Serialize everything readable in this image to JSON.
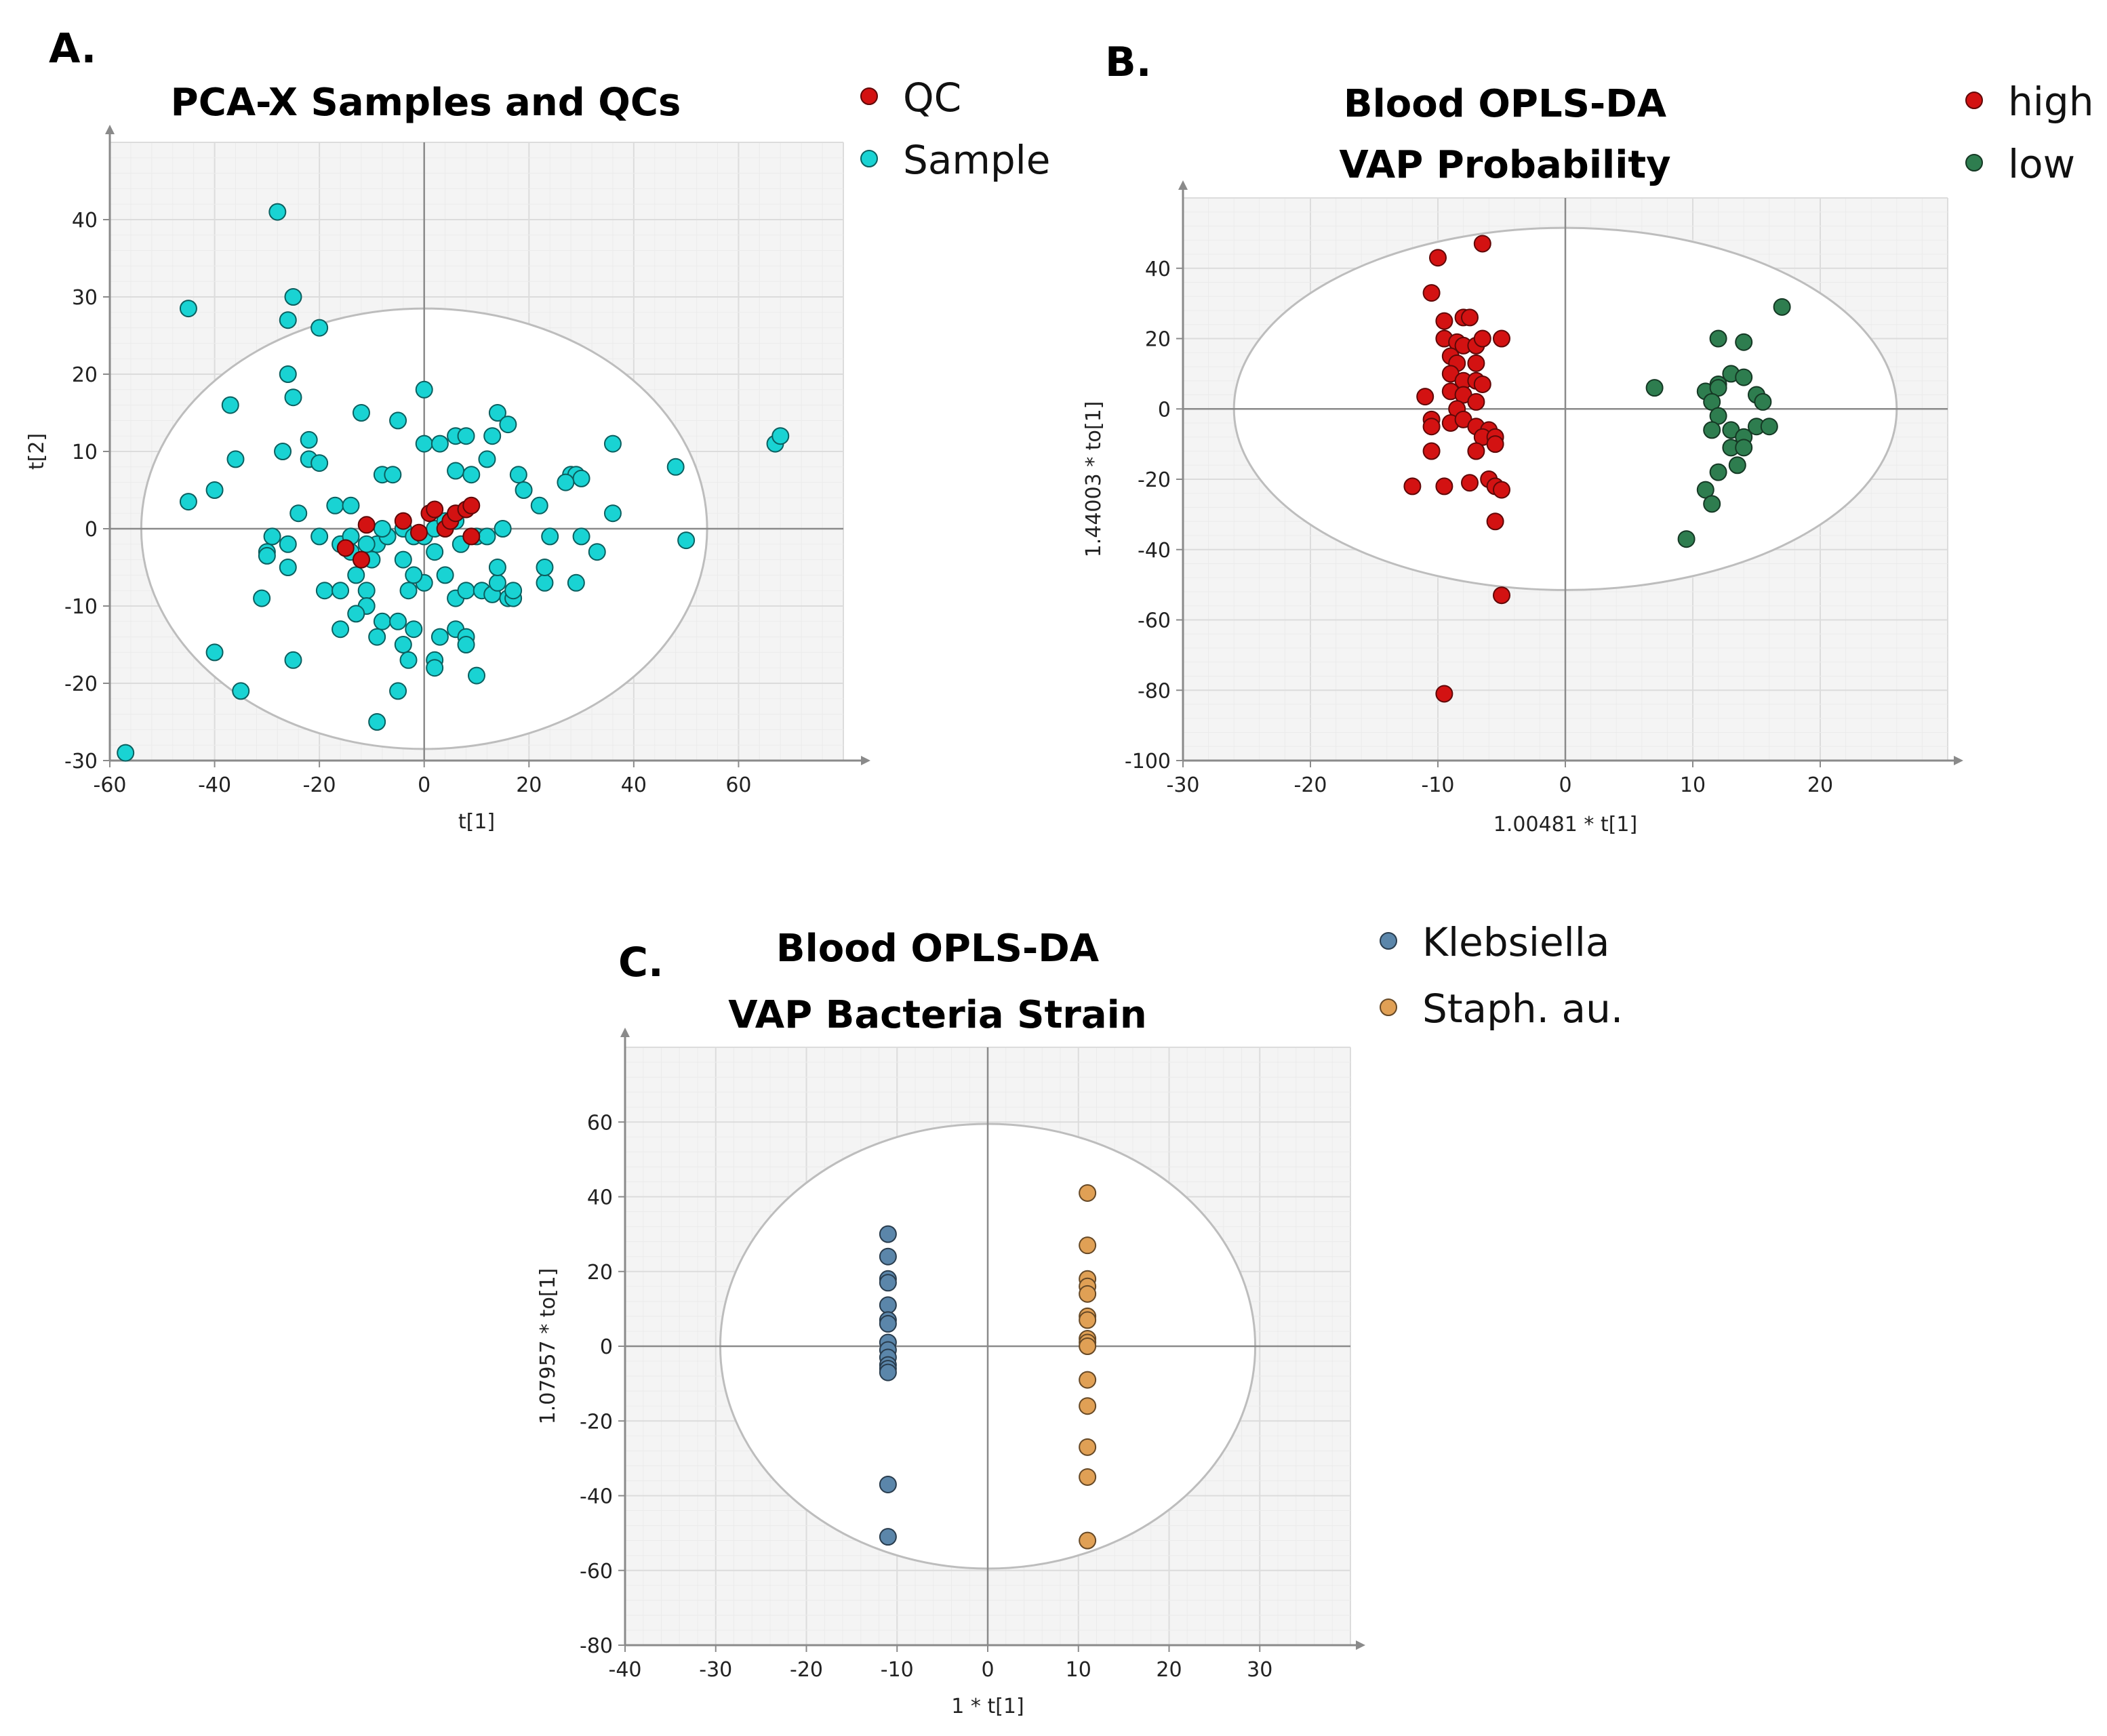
{
  "chart_data": [
    {
      "id": "A",
      "panel_label": "A.",
      "type": "scatter",
      "title_lines": [
        "PCA-X Samples and QCs"
      ],
      "xlabel": "t[1]",
      "ylabel": "t[2]",
      "xlim": [
        -60,
        80
      ],
      "ylim": [
        -30,
        50
      ],
      "xticks": [
        -60,
        -40,
        -20,
        0,
        20,
        40,
        60
      ],
      "yticks": [
        -30,
        -20,
        -10,
        0,
        10,
        20,
        30,
        40
      ],
      "ellipse": {
        "rx": 54,
        "ry": 28.5
      },
      "grid": true,
      "legend_position": "top-right",
      "series": [
        {
          "name": "Sample",
          "color": "#19d3d3",
          "points": [
            [
              -28,
              41
            ],
            [
              -25,
              30
            ],
            [
              -26,
              27
            ],
            [
              -45,
              28.5
            ],
            [
              -20,
              26
            ],
            [
              -26,
              20
            ],
            [
              -25,
              17
            ],
            [
              -37,
              16
            ],
            [
              -36,
              9
            ],
            [
              -40,
              5
            ],
            [
              -45,
              3.5
            ],
            [
              -27,
              10
            ],
            [
              -22,
              11.5
            ],
            [
              -22,
              9
            ],
            [
              -20,
              8.5
            ],
            [
              -24,
              2
            ],
            [
              -17,
              3
            ],
            [
              -14,
              3
            ],
            [
              -12,
              15
            ],
            [
              -5,
              14
            ],
            [
              0,
              18
            ],
            [
              0,
              11
            ],
            [
              3,
              11
            ],
            [
              6,
              12
            ],
            [
              8,
              12
            ],
            [
              13,
              12
            ],
            [
              14,
              15
            ],
            [
              16,
              13.5
            ],
            [
              12,
              9
            ],
            [
              18,
              7
            ],
            [
              -8,
              7
            ],
            [
              -6,
              7
            ],
            [
              6,
              7.5
            ],
            [
              9,
              7
            ],
            [
              19,
              5
            ],
            [
              22,
              3
            ],
            [
              28,
              7
            ],
            [
              29,
              7
            ],
            [
              30,
              6.5
            ],
            [
              27,
              6
            ],
            [
              36,
              11
            ],
            [
              48,
              8
            ],
            [
              67,
              11
            ],
            [
              68,
              12
            ],
            [
              -29,
              -1
            ],
            [
              -30,
              -3
            ],
            [
              -26,
              -2
            ],
            [
              -26,
              -5
            ],
            [
              -16,
              -2
            ],
            [
              -14,
              -1
            ],
            [
              -9,
              -2
            ],
            [
              -4,
              0
            ],
            [
              -2,
              -1
            ],
            [
              0,
              -1
            ],
            [
              2,
              0
            ],
            [
              4,
              1
            ],
            [
              6,
              1
            ],
            [
              7,
              -2
            ],
            [
              2,
              -3
            ],
            [
              -4,
              -4
            ],
            [
              -10,
              -4
            ],
            [
              -12,
              -4
            ],
            [
              -19,
              -8
            ],
            [
              -16,
              -8
            ],
            [
              -11,
              -8
            ],
            [
              -11,
              -10
            ],
            [
              -8,
              -12
            ],
            [
              -5,
              -12
            ],
            [
              -2,
              -13
            ],
            [
              -4,
              -15
            ],
            [
              -3,
              -17
            ],
            [
              2,
              -17
            ],
            [
              2,
              -18
            ],
            [
              6,
              -13
            ],
            [
              8,
              -14
            ],
            [
              8,
              -15
            ],
            [
              10,
              -19
            ],
            [
              -16,
              -13
            ],
            [
              -13,
              -11
            ],
            [
              -9,
              -14
            ],
            [
              -31,
              -9
            ],
            [
              -30,
              -3.5
            ],
            [
              -40,
              -16
            ],
            [
              -35,
              -21
            ],
            [
              -25,
              -17
            ],
            [
              -57,
              -29
            ],
            [
              -9,
              -25
            ],
            [
              -5,
              -21
            ],
            [
              3,
              -14
            ],
            [
              0,
              -7
            ],
            [
              4,
              -6
            ],
            [
              6,
              -9
            ],
            [
              8,
              -8
            ],
            [
              11,
              -8
            ],
            [
              13,
              -8.5
            ],
            [
              14,
              -7
            ],
            [
              14,
              -5
            ],
            [
              16,
              -9
            ],
            [
              17,
              -9
            ],
            [
              23,
              -7
            ],
            [
              23,
              -5
            ],
            [
              29,
              -7
            ],
            [
              30,
              -1
            ],
            [
              33,
              -3
            ],
            [
              36,
              2
            ],
            [
              24,
              -1
            ],
            [
              15,
              0
            ],
            [
              10,
              -1
            ],
            [
              17,
              -8
            ],
            [
              12,
              -1
            ],
            [
              -7,
              -1
            ],
            [
              -2,
              -6
            ],
            [
              -3,
              -8
            ],
            [
              -11,
              -2
            ],
            [
              -14,
              -3
            ],
            [
              -13,
              -6
            ],
            [
              50,
              -1.5
            ],
            [
              -20,
              -1
            ],
            [
              -8,
              0
            ]
          ]
        },
        {
          "name": "QC",
          "color": "#d31212",
          "points": [
            [
              -15,
              -2.5
            ],
            [
              -12,
              -4
            ],
            [
              -11,
              0.5
            ],
            [
              -4,
              1
            ],
            [
              1,
              2
            ],
            [
              2,
              2.5
            ],
            [
              4,
              0
            ],
            [
              5,
              1
            ],
            [
              6,
              2
            ],
            [
              8,
              2.5
            ],
            [
              9,
              3
            ],
            [
              9,
              -1
            ],
            [
              -1,
              -0.5
            ]
          ]
        }
      ]
    },
    {
      "id": "B",
      "panel_label": "B.",
      "type": "scatter",
      "title_lines": [
        "Blood OPLS-DA",
        "VAP Probability"
      ],
      "xlabel": "1.00481 * t[1]",
      "ylabel": "1.44003 * to[1]",
      "xlim": [
        -30,
        30
      ],
      "ylim": [
        -100,
        60
      ],
      "xticks": [
        -30,
        -20,
        -10,
        0,
        10,
        20
      ],
      "yticks": [
        -100,
        -80,
        -60,
        -40,
        -20,
        0,
        20,
        40
      ],
      "ellipse": {
        "rx": 26,
        "ry": 51.5
      },
      "grid": true,
      "legend_position": "top-right",
      "series": [
        {
          "name": "high",
          "color": "#d31212",
          "points": [
            [
              -6.5,
              47
            ],
            [
              -10,
              43
            ],
            [
              -9.5,
              25
            ],
            [
              -8,
              26
            ],
            [
              -7.5,
              26
            ],
            [
              -9.5,
              20
            ],
            [
              -8.5,
              19
            ],
            [
              -8,
              18
            ],
            [
              -7,
              18
            ],
            [
              -6.5,
              20
            ],
            [
              -5,
              20
            ],
            [
              -10.5,
              33
            ],
            [
              -9,
              15
            ],
            [
              -8.5,
              13
            ],
            [
              -7,
              13
            ],
            [
              -9,
              10
            ],
            [
              -8,
              8
            ],
            [
              -7,
              8
            ],
            [
              -6.5,
              7
            ],
            [
              -9,
              5
            ],
            [
              -8,
              4
            ],
            [
              -7,
              2
            ],
            [
              -8.5,
              0
            ],
            [
              -11,
              3.5
            ],
            [
              -10.5,
              -3
            ],
            [
              -10.5,
              -5
            ],
            [
              -9,
              -4
            ],
            [
              -8,
              -3
            ],
            [
              -7,
              -5
            ],
            [
              -6,
              -6
            ],
            [
              -6.5,
              -8
            ],
            [
              -5.5,
              -8
            ],
            [
              -5.5,
              -10
            ],
            [
              -7,
              -12
            ],
            [
              -10.5,
              -12
            ],
            [
              -12,
              -22
            ],
            [
              -9.5,
              -22
            ],
            [
              -7.5,
              -21
            ],
            [
              -6,
              -20
            ],
            [
              -5.5,
              -22
            ],
            [
              -5,
              -23
            ],
            [
              -5.5,
              -32
            ],
            [
              -5,
              -53
            ],
            [
              -9.5,
              -81
            ]
          ]
        },
        {
          "name": "low",
          "color": "#2e7d4f",
          "points": [
            [
              7,
              6
            ],
            [
              12,
              20
            ],
            [
              14,
              19
            ],
            [
              17,
              29
            ],
            [
              11,
              5
            ],
            [
              12,
              7
            ],
            [
              13,
              10
            ],
            [
              14,
              9
            ],
            [
              15,
              4
            ],
            [
              15.5,
              2
            ],
            [
              12,
              6
            ],
            [
              11.5,
              2
            ],
            [
              12,
              -2
            ],
            [
              11.5,
              -6
            ],
            [
              13,
              -6
            ],
            [
              14,
              -8
            ],
            [
              15,
              -5
            ],
            [
              16,
              -5
            ],
            [
              13,
              -11
            ],
            [
              14,
              -11
            ],
            [
              13.5,
              -16
            ],
            [
              12,
              -18
            ],
            [
              11,
              -23
            ],
            [
              11.5,
              -27
            ],
            [
              9.5,
              -37
            ]
          ]
        }
      ]
    },
    {
      "id": "C",
      "panel_label": "C.",
      "type": "scatter",
      "title_lines": [
        "Blood OPLS-DA",
        "VAP Bacteria Strain"
      ],
      "xlabel": "1 * t[1]",
      "ylabel": "1.07957 * to[1]",
      "xlim": [
        -40,
        40
      ],
      "ylim": [
        -80,
        80
      ],
      "xticks": [
        -40,
        -30,
        -20,
        -10,
        0,
        10,
        20,
        30
      ],
      "yticks": [
        -80,
        -60,
        -40,
        -20,
        0,
        20,
        40,
        60
      ],
      "ellipse": {
        "rx": 29.5,
        "ry": 59.5
      },
      "grid": true,
      "legend_position": "top-right",
      "series": [
        {
          "name": "Klebsiella",
          "color": "#5b86aa",
          "points": [
            [
              -11,
              30
            ],
            [
              -11,
              24
            ],
            [
              -11,
              18
            ],
            [
              -11,
              17
            ],
            [
              -11,
              11
            ],
            [
              -11,
              7
            ],
            [
              -11,
              6
            ],
            [
              -11,
              1
            ],
            [
              -11,
              -1
            ],
            [
              -11,
              -3
            ],
            [
              -11,
              -5
            ],
            [
              -11,
              -6
            ],
            [
              -11,
              -7
            ],
            [
              -11,
              -37
            ],
            [
              -11,
              -51
            ]
          ]
        },
        {
          "name": "Staph. au.",
          "color": "#e0a055",
          "points": [
            [
              11,
              41
            ],
            [
              11,
              27
            ],
            [
              11,
              18
            ],
            [
              11,
              16
            ],
            [
              11,
              14
            ],
            [
              11,
              8
            ],
            [
              11,
              7
            ],
            [
              11,
              2
            ],
            [
              11,
              1
            ],
            [
              11,
              0
            ],
            [
              11,
              -9
            ],
            [
              11,
              -16
            ],
            [
              11,
              -27
            ],
            [
              11,
              -35
            ],
            [
              11,
              -52
            ]
          ]
        }
      ]
    }
  ]
}
